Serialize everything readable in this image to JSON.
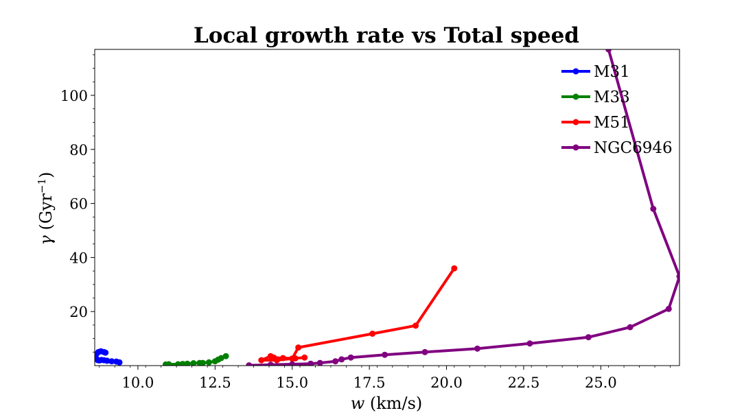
{
  "chart_data": {
    "type": "line",
    "title": "Local growth rate vs Total speed",
    "xlabel_var": "w",
    "xlabel_unit": " (km/s)",
    "ylabel_var": "γ",
    "ylabel_unit_pre": " (Gyr",
    "ylabel_unit_sup": "−1",
    "ylabel_unit_post": ")",
    "xlim": [
      8.6,
      27.55
    ],
    "ylim": [
      0,
      117
    ],
    "xticks": [
      10.0,
      12.5,
      15.0,
      17.5,
      20.0,
      22.5,
      25.0
    ],
    "xtick_labels": [
      "10.0",
      "12.5",
      "15.0",
      "17.5",
      "20.0",
      "22.5",
      "25.0"
    ],
    "yticks": [
      20,
      40,
      60,
      80,
      100
    ],
    "ytick_labels": [
      "20",
      "40",
      "60",
      "80",
      "100"
    ],
    "legend_position": "top-right",
    "grid": false,
    "series": [
      {
        "name": "M31",
        "color": "#0000ff",
        "x": [
          9.4,
          9.3,
          9.15,
          9.0,
          8.9,
          8.82,
          8.75,
          8.7,
          8.65,
          8.6,
          8.65,
          8.72,
          8.8,
          8.9,
          8.95
        ],
        "y": [
          1.2,
          1.5,
          1.6,
          1.8,
          2.0,
          2.1,
          1.9,
          2.0,
          2.6,
          3.2,
          4.2,
          5.0,
          5.3,
          5.0,
          4.8
        ]
      },
      {
        "name": "M33",
        "color": "#008000",
        "x": [
          10.9,
          11.0,
          11.3,
          11.45,
          11.6,
          11.8,
          12.0,
          12.1,
          12.3,
          12.5,
          12.6,
          12.7,
          12.85
        ],
        "y": [
          0.4,
          0.5,
          0.5,
          0.6,
          0.7,
          0.9,
          1.0,
          1.0,
          1.2,
          1.6,
          2.2,
          2.8,
          3.5
        ]
      },
      {
        "name": "M51",
        "color": "#ff0000",
        "x": [
          15.4,
          15.1,
          14.7,
          14.4,
          14.3,
          14.0,
          14.5,
          15.0,
          15.2,
          17.6,
          19.0,
          20.25
        ],
        "y": [
          3.0,
          2.7,
          2.8,
          3.0,
          3.5,
          2.0,
          2.0,
          2.6,
          6.7,
          11.8,
          14.8,
          36.0
        ]
      },
      {
        "name": "NGC6946",
        "color": "#800080",
        "x": [
          13.6,
          14.3,
          15.0,
          15.6,
          15.9,
          16.4,
          16.6,
          16.9,
          18.0,
          19.3,
          21.0,
          22.7,
          24.6,
          25.95,
          27.2,
          27.55,
          26.7,
          25.25
        ],
        "y": [
          0.1,
          0.3,
          0.5,
          0.7,
          1.0,
          1.6,
          2.3,
          3.0,
          4.0,
          5.0,
          6.3,
          8.2,
          10.5,
          14.2,
          21.0,
          33.0,
          58.0,
          117.0
        ]
      }
    ]
  }
}
